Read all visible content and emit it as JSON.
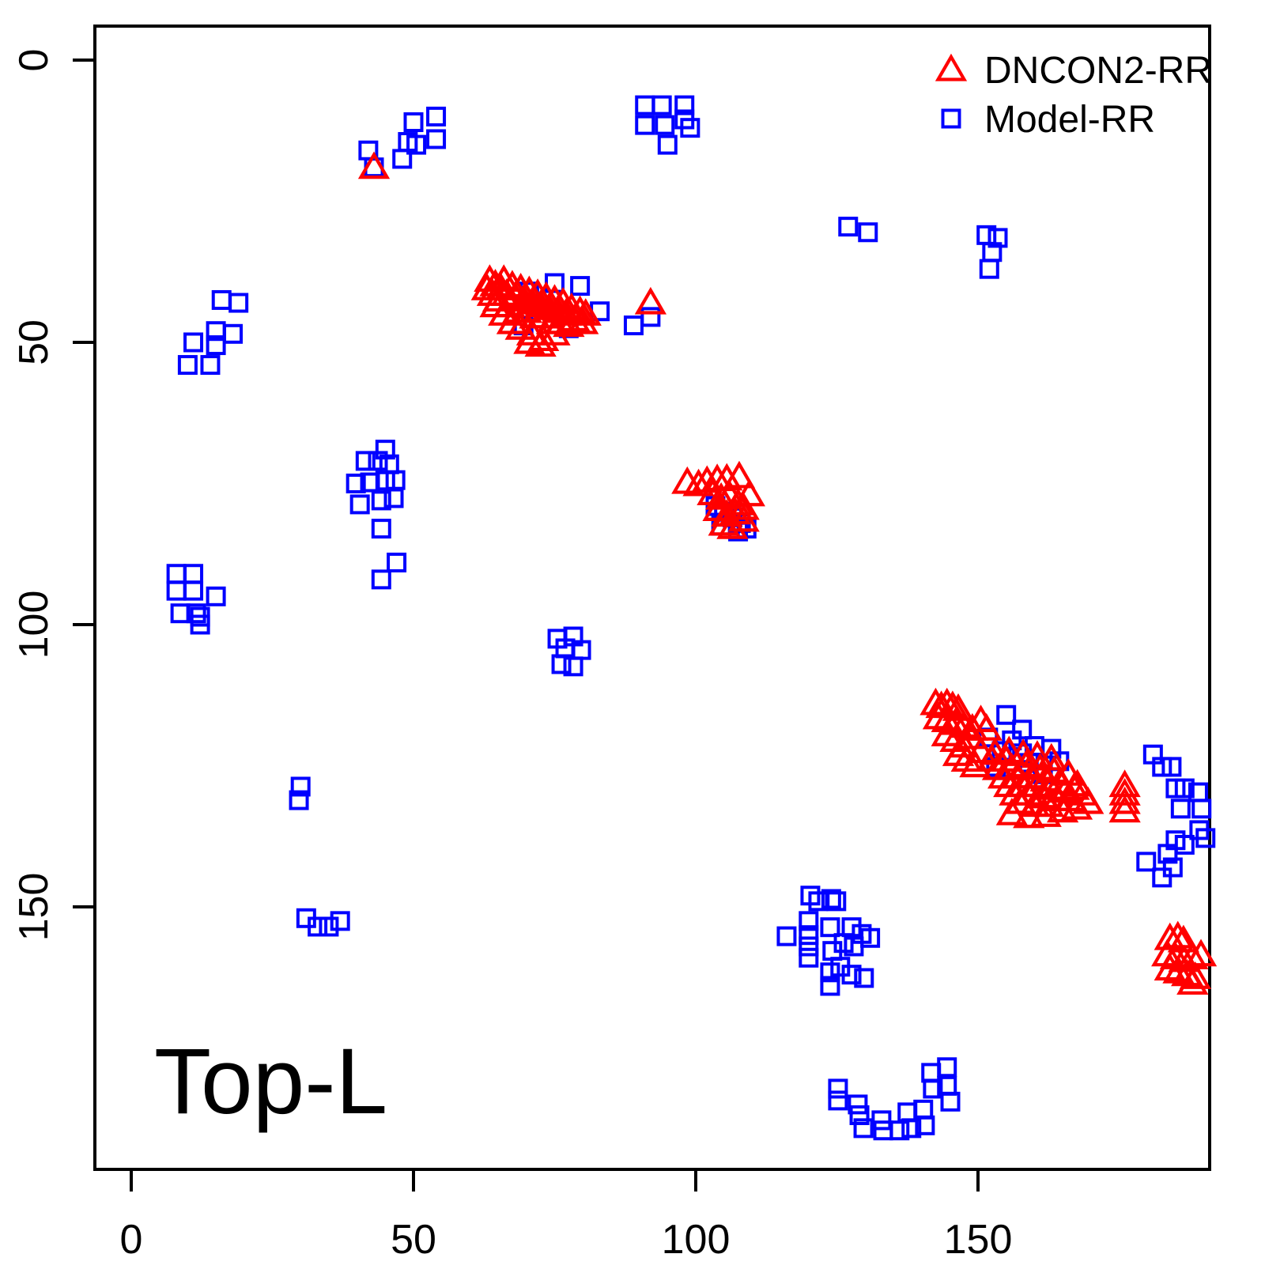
{
  "figure": {
    "title_label": "Top-L"
  },
  "chart_data": {
    "type": "scatter",
    "title": "Top-L",
    "xlabel": "",
    "ylabel": "",
    "x_ticks": [
      0,
      50,
      100,
      150
    ],
    "y_ticks": [
      0,
      50,
      100,
      150
    ],
    "xlim": [
      -6.5,
      191
    ],
    "ylim": [
      -6,
      196.5
    ],
    "y_axis_inverted": true,
    "grid": false,
    "legend": {
      "position": "top-right",
      "entries": [
        {
          "label": "DNCON2-RR",
          "marker": "triangle",
          "color": "#FF0000"
        },
        {
          "label": "Model-RR",
          "marker": "square",
          "color": "#0000FF"
        }
      ]
    },
    "series": [
      {
        "name": "Model-RR",
        "marker": "square",
        "color": "#0000FF",
        "points": [
          [
            42,
            16
          ],
          [
            43,
            19
          ],
          [
            50,
            11
          ],
          [
            49,
            14.5
          ],
          [
            48,
            17.5
          ],
          [
            50.5,
            15
          ],
          [
            54,
            10
          ],
          [
            54,
            14
          ],
          [
            91,
            8
          ],
          [
            94,
            8
          ],
          [
            98,
            8
          ],
          [
            91,
            11.5
          ],
          [
            94.5,
            11.5
          ],
          [
            98,
            10.5
          ],
          [
            99,
            12
          ],
          [
            95,
            15
          ],
          [
            127,
            29.5
          ],
          [
            130.5,
            30.5
          ],
          [
            151.5,
            31
          ],
          [
            153.5,
            31.5
          ],
          [
            152.5,
            34
          ],
          [
            152,
            37
          ],
          [
            16,
            42.5
          ],
          [
            19,
            43
          ],
          [
            15,
            48
          ],
          [
            18,
            48.5
          ],
          [
            11,
            50
          ],
          [
            15,
            50.5
          ],
          [
            10,
            54
          ],
          [
            14,
            54
          ],
          [
            70.5,
            41
          ],
          [
            75,
            39.5
          ],
          [
            79.5,
            40
          ],
          [
            83,
            44.5
          ],
          [
            69.5,
            47
          ],
          [
            77.5,
            47.5
          ],
          [
            89,
            47
          ],
          [
            92,
            45.5
          ],
          [
            45,
            69
          ],
          [
            41.5,
            71
          ],
          [
            43.7,
            71
          ],
          [
            45.7,
            71.6
          ],
          [
            39.8,
            75
          ],
          [
            42.3,
            74.8
          ],
          [
            45,
            74.5
          ],
          [
            46.8,
            74.4
          ],
          [
            40.5,
            78.7
          ],
          [
            44.3,
            78
          ],
          [
            46.5,
            77.6
          ],
          [
            44.3,
            83
          ],
          [
            47,
            89
          ],
          [
            44.3,
            92
          ],
          [
            8,
            91
          ],
          [
            11,
            91
          ],
          [
            8,
            94
          ],
          [
            11,
            94
          ],
          [
            15,
            95
          ],
          [
            8.7,
            98
          ],
          [
            11.5,
            98
          ],
          [
            12.2,
            98.6
          ],
          [
            12.2,
            100
          ],
          [
            103.5,
            79
          ],
          [
            105,
            80
          ],
          [
            106.5,
            81
          ],
          [
            108,
            82
          ],
          [
            104.5,
            82.5
          ],
          [
            107.5,
            83.5
          ],
          [
            109,
            83
          ],
          [
            75.5,
            102.5
          ],
          [
            78.3,
            102.1
          ],
          [
            76.9,
            104.2
          ],
          [
            79.7,
            104.5
          ],
          [
            76.2,
            107
          ],
          [
            78.3,
            107.4
          ],
          [
            155,
            116
          ],
          [
            157.8,
            118.6
          ],
          [
            151.8,
            120
          ],
          [
            154.2,
            122.4
          ],
          [
            157.8,
            122.8
          ],
          [
            153.2,
            125.2
          ],
          [
            156,
            120.5
          ],
          [
            160,
            121.5
          ],
          [
            163,
            122
          ],
          [
            164.4,
            124.2
          ],
          [
            159,
            124.5
          ],
          [
            161.5,
            126.5
          ],
          [
            30,
            128.7
          ],
          [
            29.7,
            131.1
          ],
          [
            181,
            123
          ],
          [
            182.6,
            125.2
          ],
          [
            184.3,
            125.2
          ],
          [
            185,
            129
          ],
          [
            186.6,
            129
          ],
          [
            185.9,
            132.6
          ],
          [
            189,
            129.7
          ],
          [
            189.6,
            132.6
          ],
          [
            189.2,
            136.4
          ],
          [
            190.3,
            137.8
          ],
          [
            185,
            138.2
          ],
          [
            186.6,
            139
          ],
          [
            183.6,
            140.6
          ],
          [
            179.8,
            142
          ],
          [
            184.5,
            143
          ],
          [
            182.6,
            144.8
          ],
          [
            31,
            152
          ],
          [
            33,
            153.5
          ],
          [
            35,
            153.5
          ],
          [
            37,
            152.5
          ],
          [
            120.3,
            148
          ],
          [
            121.7,
            149
          ],
          [
            124,
            148.6
          ],
          [
            124.9,
            149
          ],
          [
            116.1,
            155.2
          ],
          [
            120,
            152.5
          ],
          [
            120,
            155
          ],
          [
            120,
            157
          ],
          [
            120,
            159
          ],
          [
            123.8,
            153.6
          ],
          [
            127.6,
            153.6
          ],
          [
            129.4,
            154.8
          ],
          [
            126.2,
            156.4
          ],
          [
            124.2,
            157.8
          ],
          [
            128,
            157
          ],
          [
            130.9,
            155.5
          ],
          [
            123.8,
            161.6
          ],
          [
            125.6,
            160.6
          ],
          [
            127.6,
            162
          ],
          [
            129.8,
            162.6
          ],
          [
            123.8,
            164
          ],
          [
            125.2,
            182.2
          ],
          [
            125.2,
            184.3
          ],
          [
            128.7,
            185
          ],
          [
            129,
            186.9
          ],
          [
            129.7,
            189.2
          ],
          [
            132.9,
            187.8
          ],
          [
            133.2,
            189.6
          ],
          [
            136.1,
            189.6
          ],
          [
            137.5,
            186.4
          ],
          [
            138.2,
            189.2
          ],
          [
            140.3,
            185.9
          ],
          [
            140.6,
            188.7
          ],
          [
            141.7,
            179.4
          ],
          [
            142,
            182.2
          ],
          [
            144.5,
            178.4
          ],
          [
            144.5,
            181.7
          ],
          [
            145.1,
            184.5
          ]
        ]
      },
      {
        "name": "DNCON2-RR",
        "marker": "triangle",
        "color": "#FF0000",
        "points": [
          [
            43,
            19
          ],
          [
            63,
            40.5
          ],
          [
            63.5,
            39
          ],
          [
            64,
            41.5
          ],
          [
            64.5,
            39.8
          ],
          [
            65,
            42.5
          ],
          [
            65.5,
            40.5
          ],
          [
            66,
            39
          ],
          [
            66.5,
            41.5
          ],
          [
            67,
            43.5
          ],
          [
            67.5,
            40
          ],
          [
            68,
            42
          ],
          [
            68.5,
            44.5
          ],
          [
            69,
            40.5
          ],
          [
            69.5,
            42.5
          ],
          [
            70,
            44.5
          ],
          [
            70.5,
            41
          ],
          [
            71,
            43
          ],
          [
            71.5,
            45.5
          ],
          [
            72,
            41.5
          ],
          [
            72.5,
            43.5
          ],
          [
            73,
            45.5
          ],
          [
            73.5,
            42
          ],
          [
            74,
            44
          ],
          [
            74.5,
            46.5
          ],
          [
            75,
            42.5
          ],
          [
            75.5,
            44.5
          ],
          [
            76,
            46.5
          ],
          [
            76.5,
            43
          ],
          [
            77,
            45
          ],
          [
            77.5,
            47
          ],
          [
            78,
            44
          ],
          [
            78.5,
            46
          ],
          [
            79.5,
            44.5
          ],
          [
            80,
            46.5
          ],
          [
            80.5,
            45
          ],
          [
            69,
            47.5
          ],
          [
            71,
            48.5
          ],
          [
            73,
            49.5
          ],
          [
            75,
            48.5
          ],
          [
            70.5,
            50
          ],
          [
            72.5,
            50.5
          ],
          [
            66,
            45
          ],
          [
            67.5,
            46.5
          ],
          [
            64.5,
            43.5
          ],
          [
            92,
            43
          ],
          [
            98.5,
            74.8
          ],
          [
            100.5,
            75.2
          ],
          [
            102,
            74.6
          ],
          [
            103.8,
            74.3
          ],
          [
            105.5,
            74.2
          ],
          [
            107.7,
            73.8
          ],
          [
            103,
            76.8
          ],
          [
            104.5,
            77.6
          ],
          [
            106,
            77.2
          ],
          [
            107.5,
            78.6
          ],
          [
            109.5,
            77
          ],
          [
            104,
            79.6
          ],
          [
            105.5,
            80.6
          ],
          [
            107,
            80.2
          ],
          [
            108.5,
            79.4
          ],
          [
            105,
            82.2
          ],
          [
            106.5,
            82.8
          ],
          [
            108.5,
            81.5
          ],
          [
            142.5,
            114
          ],
          [
            143.5,
            114.5
          ],
          [
            144.5,
            114
          ],
          [
            145.5,
            114.5
          ],
          [
            146.5,
            115
          ],
          [
            143,
            116.5
          ],
          [
            144.5,
            117
          ],
          [
            146,
            117.5
          ],
          [
            147.5,
            118
          ],
          [
            149,
            118.5
          ],
          [
            150.5,
            117
          ],
          [
            151.5,
            118.5
          ],
          [
            144.5,
            119.5
          ],
          [
            146,
            120.5
          ],
          [
            147.5,
            121.5
          ],
          [
            149,
            120
          ],
          [
            150.5,
            122.5
          ],
          [
            146.5,
            123
          ],
          [
            148,
            124
          ],
          [
            149.5,
            125
          ],
          [
            152.5,
            124
          ],
          [
            153.5,
            125.5
          ],
          [
            154.5,
            127
          ],
          [
            155,
            124
          ],
          [
            155.5,
            128.5
          ],
          [
            156,
            125.5
          ],
          [
            156.5,
            130
          ],
          [
            157,
            127
          ],
          [
            157.5,
            131.5
          ],
          [
            158,
            128.5
          ],
          [
            158.5,
            125
          ],
          [
            159,
            130
          ],
          [
            159.5,
            127
          ],
          [
            160,
            132
          ],
          [
            160.5,
            128.5
          ],
          [
            161,
            125.5
          ],
          [
            161.5,
            130.5
          ],
          [
            162,
            127.5
          ],
          [
            162.5,
            132
          ],
          [
            163,
            129
          ],
          [
            163.5,
            126
          ],
          [
            164,
            131
          ],
          [
            164.5,
            128
          ],
          [
            165,
            133
          ],
          [
            165.5,
            129.5
          ],
          [
            166,
            126.5
          ],
          [
            166.5,
            131
          ],
          [
            167,
            129
          ],
          [
            167.5,
            132.5
          ],
          [
            168.5,
            130
          ],
          [
            169.5,
            131.5
          ],
          [
            167.6,
            128.4
          ],
          [
            153,
            122.8
          ],
          [
            155.5,
            122.5
          ],
          [
            158,
            123
          ],
          [
            160.5,
            123.3
          ],
          [
            163,
            123.8
          ],
          [
            156,
            133.5
          ],
          [
            159,
            134
          ],
          [
            162,
            133.8
          ],
          [
            176,
            128.5
          ],
          [
            176,
            130
          ],
          [
            176,
            131.5
          ],
          [
            176,
            133
          ],
          [
            184,
            155.6
          ],
          [
            185.4,
            155.3
          ],
          [
            186.4,
            156
          ],
          [
            183.5,
            158.5
          ],
          [
            185,
            159
          ],
          [
            186.5,
            159.5
          ],
          [
            188,
            159
          ],
          [
            189.5,
            158.5
          ],
          [
            184,
            161
          ],
          [
            185.5,
            161.5
          ],
          [
            187,
            162
          ],
          [
            188.5,
            162.5
          ],
          [
            188,
            163.5
          ]
        ]
      }
    ]
  }
}
